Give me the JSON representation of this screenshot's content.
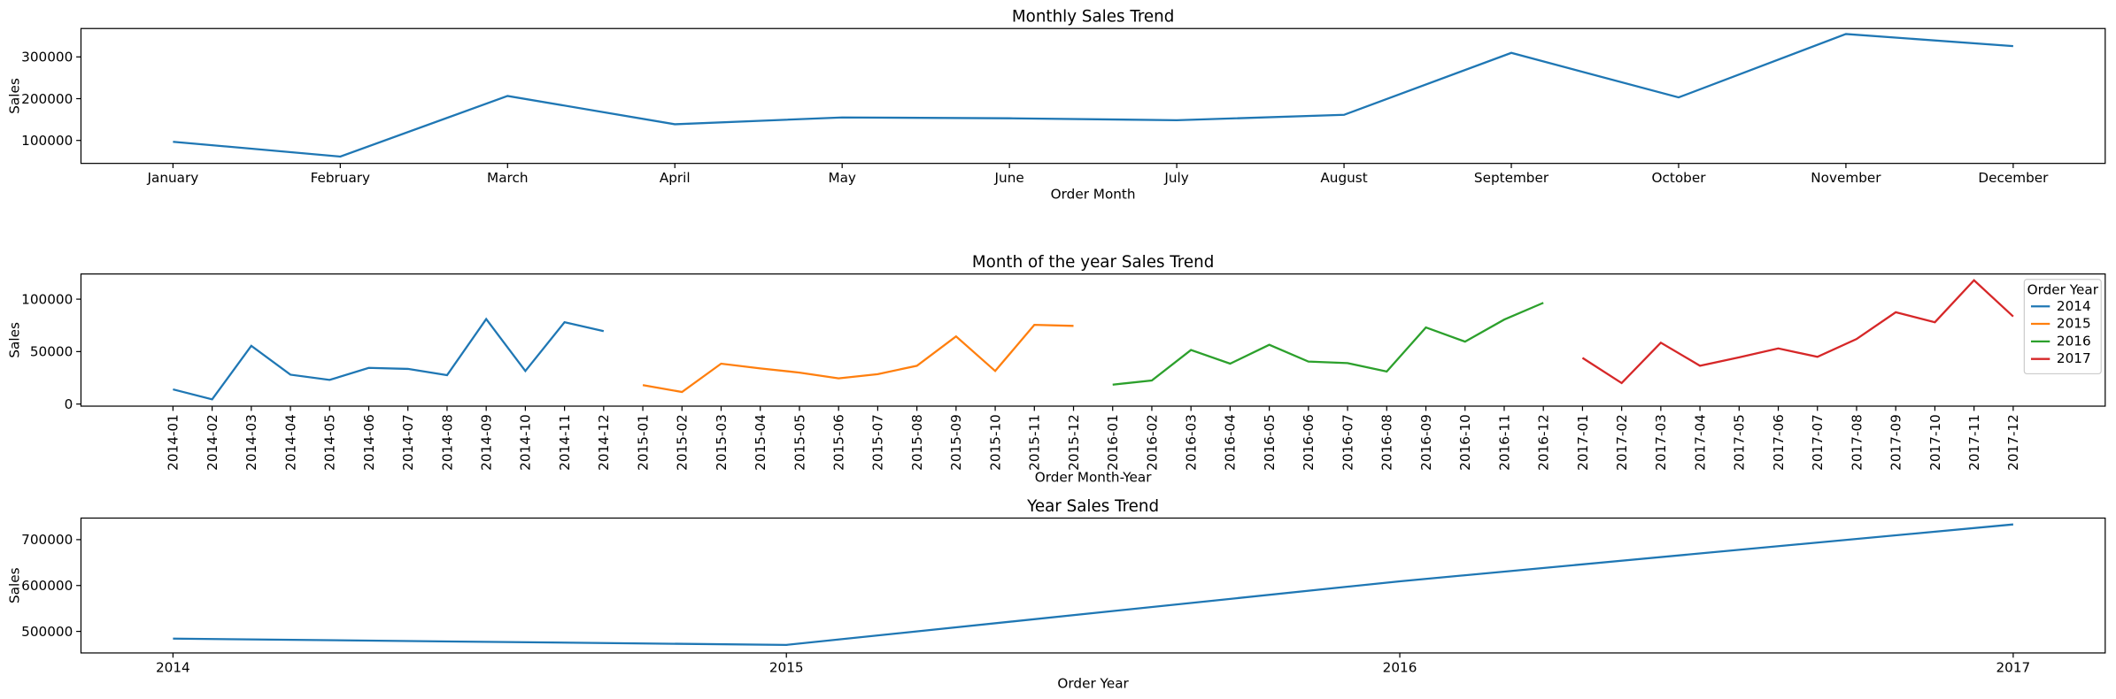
{
  "chart_data": [
    {
      "type": "line",
      "title": "Monthly Sales Trend",
      "title_color": "red",
      "xlabel": "Order Month",
      "ylabel": "Sales",
      "categories": [
        "January",
        "February",
        "March",
        "April",
        "May",
        "June",
        "July",
        "August",
        "September",
        "October",
        "November",
        "December"
      ],
      "series": [
        {
          "color": "#1f77b4",
          "values": [
            96800,
            61300,
            206500,
            138700,
            155000,
            153000,
            148400,
            161300,
            309700,
            203000,
            354800,
            325800
          ]
        }
      ],
      "ylim": [
        45000,
        368000
      ],
      "yticks": [
        100000,
        200000,
        300000
      ]
    },
    {
      "type": "line",
      "title": "Month of the year Sales Trend",
      "title_color": "red",
      "xlabel": "Order Month-Year",
      "ylabel": "Sales",
      "x_rotate": true,
      "legend_title": "Order Year",
      "legend": "upper right",
      "categories": [
        "2014-01",
        "2014-02",
        "2014-03",
        "2014-04",
        "2014-05",
        "2014-06",
        "2014-07",
        "2014-08",
        "2014-09",
        "2014-10",
        "2014-11",
        "2014-12",
        "2015-01",
        "2015-02",
        "2015-03",
        "2015-04",
        "2015-05",
        "2015-06",
        "2015-07",
        "2015-08",
        "2015-09",
        "2015-10",
        "2015-11",
        "2015-12",
        "2016-01",
        "2016-02",
        "2016-03",
        "2016-04",
        "2016-05",
        "2016-06",
        "2016-07",
        "2016-08",
        "2016-09",
        "2016-10",
        "2016-11",
        "2016-12",
        "2017-01",
        "2017-02",
        "2017-03",
        "2017-04",
        "2017-05",
        "2017-06",
        "2017-07",
        "2017-08",
        "2017-09",
        "2017-10",
        "2017-11",
        "2017-12"
      ],
      "series": [
        {
          "name": "2014",
          "color": "#1f77b4",
          "values": [
            14000,
            4500,
            55500,
            28000,
            23000,
            34500,
            33500,
            27500,
            81000,
            31500,
            78000,
            69500,
            null,
            null,
            null,
            null,
            null,
            null,
            null,
            null,
            null,
            null,
            null,
            null,
            null,
            null,
            null,
            null,
            null,
            null,
            null,
            null,
            null,
            null,
            null,
            null,
            null,
            null,
            null,
            null,
            null,
            null,
            null,
            null,
            null,
            null,
            null,
            null
          ]
        },
        {
          "name": "2015",
          "color": "#ff7f0e",
          "values": [
            null,
            null,
            null,
            null,
            null,
            null,
            null,
            null,
            null,
            null,
            null,
            null,
            18000,
            11500,
            38500,
            34000,
            30000,
            24500,
            28500,
            36500,
            64500,
            31500,
            75500,
            74500,
            null,
            null,
            null,
            null,
            null,
            null,
            null,
            null,
            null,
            null,
            null,
            null,
            null,
            null,
            null,
            null,
            null,
            null,
            null,
            null,
            null,
            null,
            null,
            null
          ]
        },
        {
          "name": "2016",
          "color": "#2ca02c",
          "values": [
            null,
            null,
            null,
            null,
            null,
            null,
            null,
            null,
            null,
            null,
            null,
            null,
            null,
            null,
            null,
            null,
            null,
            null,
            null,
            null,
            null,
            null,
            null,
            null,
            18500,
            22500,
            51500,
            38500,
            56500,
            40500,
            39000,
            31000,
            73000,
            59500,
            80500,
            96500,
            null,
            null,
            null,
            null,
            null,
            null,
            null,
            null,
            null,
            null,
            null,
            null
          ]
        },
        {
          "name": "2017",
          "color": "#d62728",
          "values": [
            null,
            null,
            null,
            null,
            null,
            null,
            null,
            null,
            null,
            null,
            null,
            null,
            null,
            null,
            null,
            null,
            null,
            null,
            null,
            null,
            null,
            null,
            null,
            null,
            null,
            null,
            null,
            null,
            null,
            null,
            null,
            null,
            null,
            null,
            null,
            null,
            44000,
            20000,
            58500,
            36500,
            44500,
            53000,
            45000,
            62000,
            87500,
            78000,
            118000,
            83500
          ]
        }
      ],
      "ylim": [
        -2000,
        124000
      ],
      "yticks": [
        0,
        50000,
        100000
      ]
    },
    {
      "type": "line",
      "title": "Year Sales Trend",
      "title_color": "red",
      "xlabel": "Order Year",
      "ylabel": "Sales",
      "x": [
        2014,
        2015,
        2016,
        2017
      ],
      "xlim": [
        2013.85,
        2017.15
      ],
      "xticks": [
        2014,
        2015,
        2016,
        2017
      ],
      "series": [
        {
          "color": "#1f77b4",
          "values": [
            484247,
            470533,
            609206,
            733215
          ]
        }
      ],
      "ylim": [
        453000,
        747000
      ],
      "yticks": [
        500000,
        600000,
        700000
      ]
    }
  ]
}
